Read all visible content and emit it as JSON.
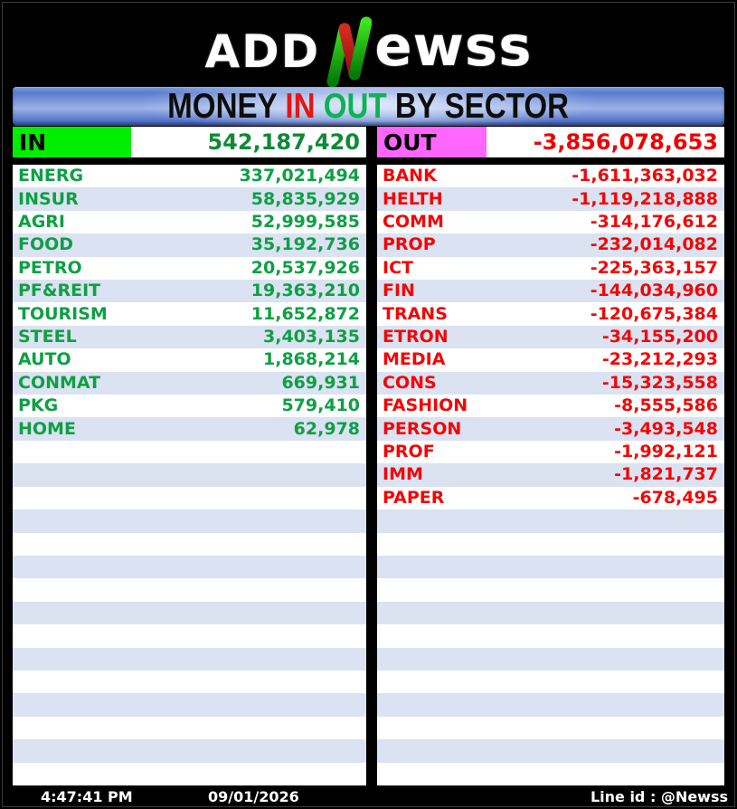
{
  "logo": {
    "prefix": "ADD",
    "suffix": "ewss",
    "n_icon": "green-red-n"
  },
  "banner": {
    "part1": "MONEY ",
    "part2": "IN",
    "part3": " OUT",
    "part4": " BY SECTOR"
  },
  "in_panel": {
    "label": "IN",
    "total": "542,187,420",
    "rows": [
      {
        "label": "ENERG",
        "value": "337,021,494"
      },
      {
        "label": "INSUR",
        "value": "58,835,929"
      },
      {
        "label": "AGRI",
        "value": "52,999,585"
      },
      {
        "label": "FOOD",
        "value": "35,192,736"
      },
      {
        "label": "PETRO",
        "value": "20,537,926"
      },
      {
        "label": "PF&REIT",
        "value": "19,363,210"
      },
      {
        "label": "TOURISM",
        "value": "11,652,872"
      },
      {
        "label": "STEEL",
        "value": "3,403,135"
      },
      {
        "label": "AUTO",
        "value": "1,868,214"
      },
      {
        "label": "CONMAT",
        "value": "669,931"
      },
      {
        "label": "PKG",
        "value": "579,410"
      },
      {
        "label": "HOME",
        "value": "62,978"
      }
    ]
  },
  "out_panel": {
    "label": "OUT",
    "total": "-3,856,078,653",
    "rows": [
      {
        "label": "BANK",
        "value": "-1,611,363,032"
      },
      {
        "label": "HELTH",
        "value": "-1,119,218,888"
      },
      {
        "label": "COMM",
        "value": "-314,176,612"
      },
      {
        "label": "PROP",
        "value": "-232,014,082"
      },
      {
        "label": "ICT",
        "value": "-225,363,157"
      },
      {
        "label": "FIN",
        "value": "-144,034,960"
      },
      {
        "label": "TRANS",
        "value": "-120,675,384"
      },
      {
        "label": "ETRON",
        "value": "-34,155,200"
      },
      {
        "label": "MEDIA",
        "value": "-23,212,293"
      },
      {
        "label": "CONS",
        "value": "-15,323,558"
      },
      {
        "label": "FASHION",
        "value": "-8,555,586"
      },
      {
        "label": "PERSON",
        "value": "-3,493,548"
      },
      {
        "label": "PROF",
        "value": "-1,992,121"
      },
      {
        "label": "IMM",
        "value": "-1,821,737"
      },
      {
        "label": "PAPER",
        "value": "-678,495"
      }
    ]
  },
  "footer": {
    "time": "4:47:41 PM",
    "date": "09/01/2026",
    "line_id": "Line id : @Newss"
  },
  "layout": {
    "total_rows_per_panel": 27
  },
  "colors": {
    "in_tag_bg": "#00ef00",
    "out_tag_bg": "#ff66ff",
    "in_text": "#0da044",
    "in_total_text": "#0e8a36",
    "out_text": "#f40505",
    "row_alt_bg": "#dbe2f1",
    "banner_in_red": "#e81410",
    "banner_out_green": "#0db352",
    "footer_line_green": "#00dd00",
    "banner_blue": "#5a7ccd"
  },
  "chart_data": {
    "type": "table",
    "title": "MONEY IN OUT BY SECTOR",
    "series": [
      {
        "name": "IN",
        "total": 542187420,
        "categories": [
          "ENERG",
          "INSUR",
          "AGRI",
          "FOOD",
          "PETRO",
          "PF&REIT",
          "TOURISM",
          "STEEL",
          "AUTO",
          "CONMAT",
          "PKG",
          "HOME"
        ],
        "values": [
          337021494,
          58835929,
          52999585,
          35192736,
          20537926,
          19363210,
          11652872,
          3403135,
          1868214,
          669931,
          579410,
          62978
        ]
      },
      {
        "name": "OUT",
        "total": -3856078653,
        "categories": [
          "BANK",
          "HELTH",
          "COMM",
          "PROP",
          "ICT",
          "FIN",
          "TRANS",
          "ETRON",
          "MEDIA",
          "CONS",
          "FASHION",
          "PERSON",
          "PROF",
          "IMM",
          "PAPER"
        ],
        "values": [
          -1611363032,
          -1119218888,
          -314176612,
          -232014082,
          -225363157,
          -144034960,
          -120675384,
          -34155200,
          -23212293,
          -15323558,
          -8555586,
          -3493548,
          -1992121,
          -1821737,
          -678495
        ]
      }
    ]
  }
}
